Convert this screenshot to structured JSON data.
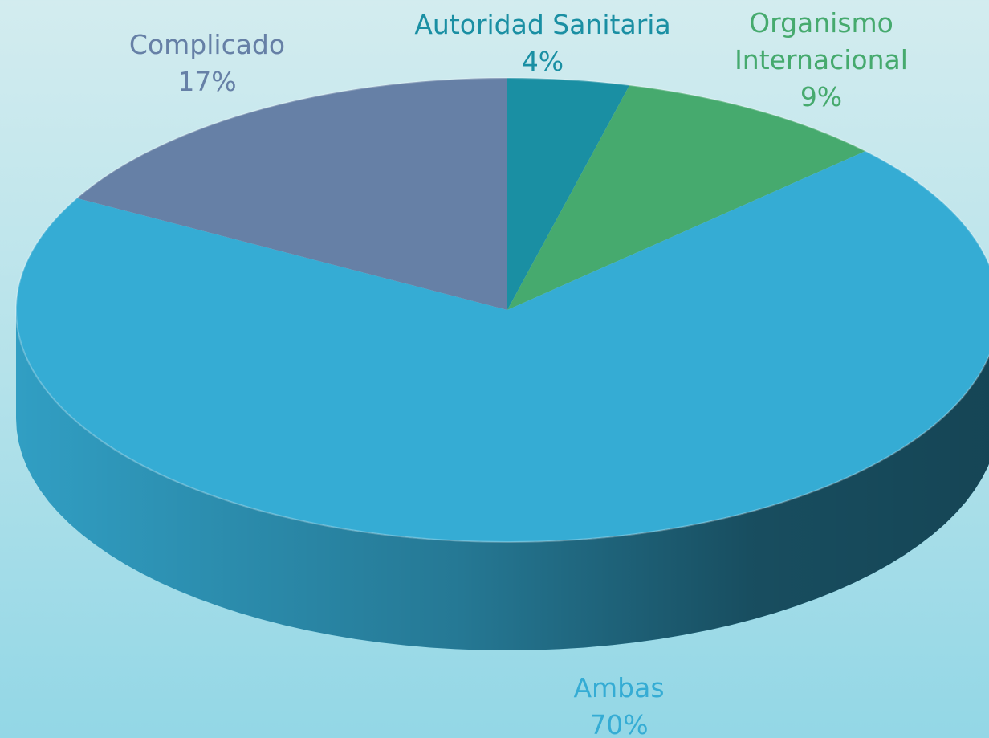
{
  "chart_data": {
    "type": "pie",
    "categories": [
      "Autoridad Sanitaria",
      "Organismo Internacional",
      "Ambas",
      "Complicado"
    ],
    "values": [
      4,
      9,
      70,
      17
    ],
    "value_labels": [
      "4%",
      "9%",
      "70%",
      "17%"
    ],
    "colors": [
      "#1a8fa3",
      "#46aa6e",
      "#35acd4",
      "#6680a6"
    ],
    "start_angle": 0,
    "direction": "clockwise",
    "three_d": true
  }
}
